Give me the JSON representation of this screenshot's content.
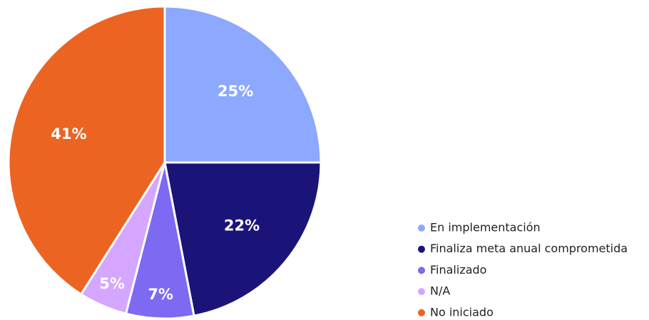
{
  "chart_data": {
    "type": "pie",
    "categories": [
      "En implementación",
      "Finaliza meta anual comprometida",
      "Finalizado",
      "N/A",
      "No iniciado"
    ],
    "values": [
      25,
      22,
      7,
      5,
      41
    ],
    "value_labels": [
      "25%",
      "22%",
      "7%",
      "5%",
      "41%"
    ],
    "colors": [
      "#8ca8ff",
      "#1b1478",
      "#7d69f2",
      "#d5a6ff",
      "#ec6422"
    ],
    "legend": "bottom-right"
  }
}
